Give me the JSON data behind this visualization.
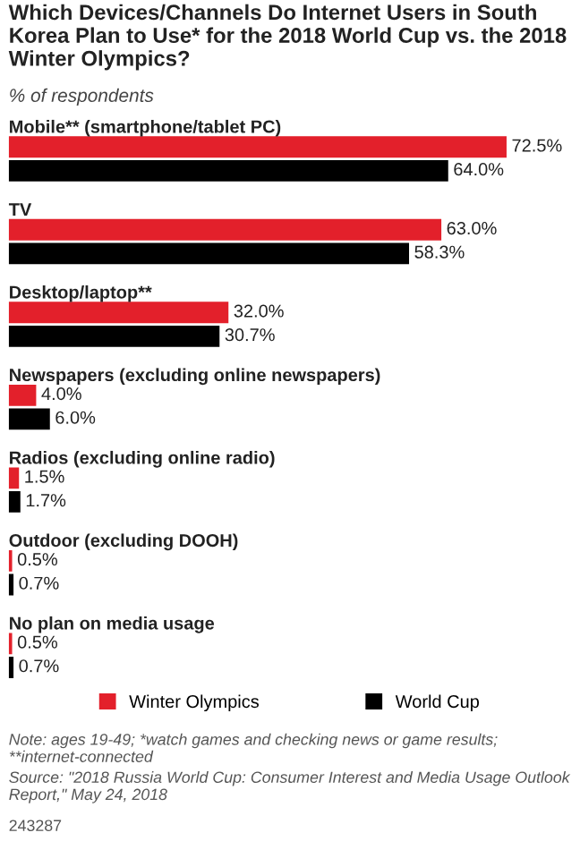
{
  "chart_data": {
    "type": "bar",
    "orientation": "horizontal",
    "title": "Which Devices/Channels Do Internet Users in South Korea Plan to Use* for the 2018 World Cup vs. the 2018 Winter Olympics?",
    "subtitle": "% of respondents",
    "categories": [
      "Mobile** (smartphone/tablet PC)",
      "TV",
      "Desktop/laptop**",
      "Newspapers (excluding online newspapers)",
      "Radios (excluding online radio)",
      "Outdoor (excluding DOOH)",
      "No plan on media usage"
    ],
    "series": [
      {
        "name": "Winter Olympics",
        "color": "#e3202b",
        "values": [
          72.5,
          63.0,
          32.0,
          4.0,
          1.5,
          0.5,
          0.5
        ],
        "value_labels": [
          "72.5%",
          "63.0%",
          "32.0%",
          "4.0%",
          "1.5%",
          "0.5%",
          "0.5%"
        ]
      },
      {
        "name": "World Cup",
        "color": "#000000",
        "values": [
          64.0,
          58.3,
          30.7,
          6.0,
          1.7,
          0.7,
          0.7
        ],
        "value_labels": [
          "64.0%",
          "58.3%",
          "30.7%",
          "6.0%",
          "1.7%",
          "0.7%",
          "0.7%"
        ]
      }
    ],
    "legend": "bottom",
    "annotations": [
      "Note: ages 19-49; *watch games and checking news or game results; **internet-connected",
      "Source: \"2018 Russia World Cup: Consumer Interest and Media Usage Outlook Report,\" May 24, 2018",
      "243287"
    ]
  }
}
